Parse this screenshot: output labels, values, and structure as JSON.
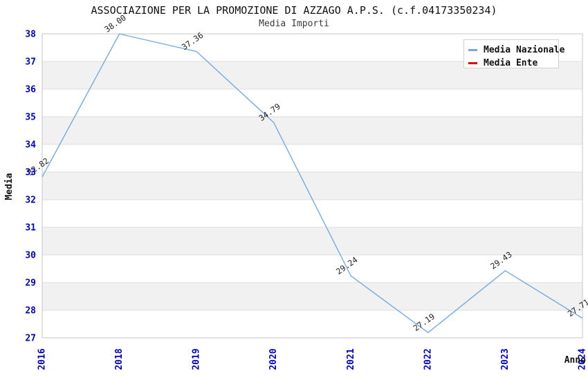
{
  "header": {
    "title": "ASSOCIAZIONE PER LA PROMOZIONE DI AZZAGO A.P.S. (c.f.04173350234)",
    "subtitle": "Media Importi"
  },
  "legend": {
    "items": [
      {
        "label": "Media Nazionale",
        "color": "#74AAE4"
      },
      {
        "label": "Media Ente",
        "color": "#DD0000"
      }
    ]
  },
  "chart_data": {
    "type": "line",
    "title": "ASSOCIAZIONE PER LA PROMOZIONE DI AZZAGO A.P.S. (c.f.04173350234)",
    "subtitle": "Media Importi",
    "xlabel": "Anno",
    "ylabel": "Media",
    "categories": [
      "2016",
      "2018",
      "2019",
      "2020",
      "2021",
      "2022",
      "2023",
      "2024"
    ],
    "series": [
      {
        "name": "Media Nazionale",
        "color": "#74AAE4",
        "values": [
          32.82,
          38.0,
          37.36,
          34.79,
          29.24,
          27.19,
          29.43,
          27.71
        ],
        "point_labels": [
          "32.82",
          "38.00",
          "37.36",
          "34.79",
          "29.24",
          "27.19",
          "29.43",
          "27.71"
        ]
      },
      {
        "name": "Media Ente",
        "color": "#DD0000",
        "values": [],
        "point_labels": []
      }
    ],
    "ylim": [
      27,
      38
    ],
    "y_tick_step": 1,
    "grid": true,
    "legend_position": "top-right",
    "band_colors": [
      "#FFFFFF",
      "#F1F1F1"
    ]
  },
  "colors": {
    "axis_tick_text": "#0000CC",
    "grid_line": "#DDDDDD",
    "plot_border": "#C6C6C6",
    "band_gray": "#F1F1F1",
    "point_label_text": "#222222"
  }
}
